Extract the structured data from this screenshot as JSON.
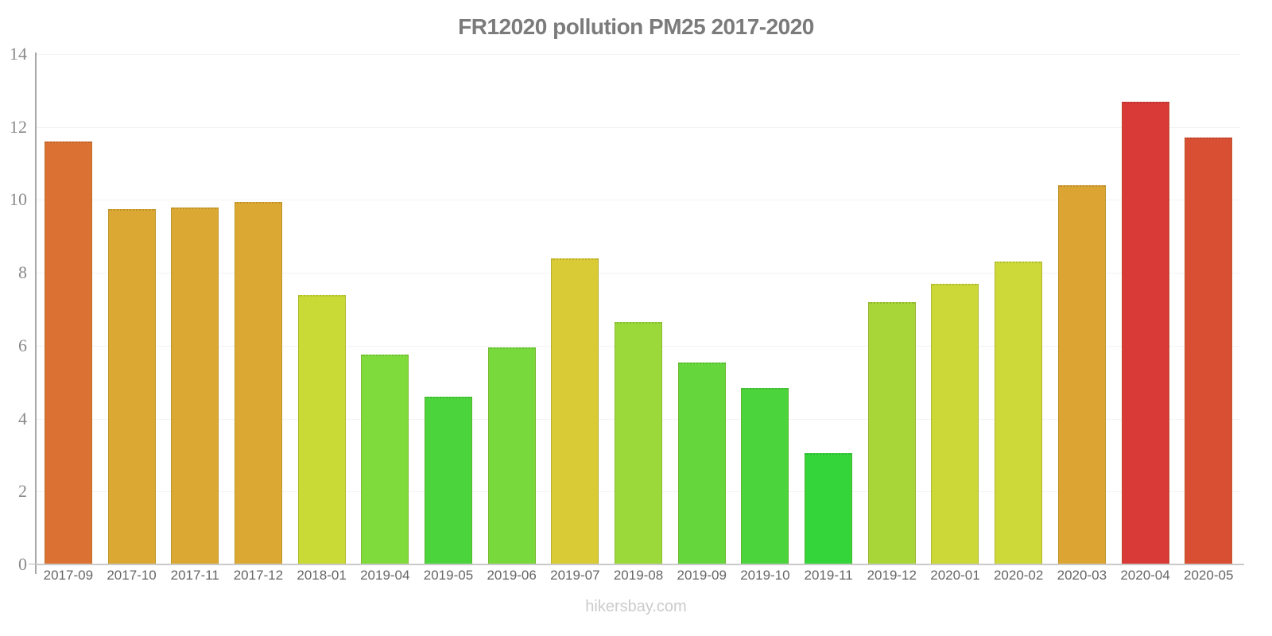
{
  "title": "FR12020 pollution PM25 2017-2020",
  "footer": "hikersbay.com",
  "colors": {
    "title_text": "#7b7b7b",
    "axis_line": "#a8a8a8",
    "baseline": "#c9c9c9",
    "gridline": "#f3f3f3",
    "y_tick_text": "#8a8a8a",
    "x_tick_text": "#666666",
    "footer_text": "#cbcbcb",
    "background": "#ffffff"
  },
  "chart_data": {
    "type": "bar",
    "title": "FR12020 pollution PM25 2017-2020",
    "xlabel": "",
    "ylabel": "",
    "ylim": [
      0,
      14
    ],
    "yticks": [
      0,
      2,
      4,
      6,
      8,
      10,
      12,
      14
    ],
    "grid": true,
    "legend": "none",
    "categories": [
      "2017-09",
      "2017-10",
      "2017-11",
      "2017-12",
      "2018-01",
      "2019-04",
      "2019-05",
      "2019-06",
      "2019-07",
      "2019-08",
      "2019-09",
      "2019-10",
      "2019-11",
      "2019-12",
      "2020-01",
      "2020-02",
      "2020-03",
      "2020-04",
      "2020-05"
    ],
    "values": [
      11.6,
      9.75,
      9.8,
      9.95,
      7.4,
      5.75,
      4.6,
      5.95,
      8.4,
      6.65,
      5.55,
      4.85,
      3.05,
      7.2,
      7.7,
      8.3,
      10.4,
      12.7,
      11.7
    ],
    "bar_colors": [
      "#db7233",
      "#dba933",
      "#dba933",
      "#dba933",
      "#c9da36",
      "#7fda3c",
      "#4bd43b",
      "#77d93c",
      "#d9cb35",
      "#9bd93a",
      "#65d73c",
      "#4bd43b",
      "#33d53a",
      "#a8d639",
      "#ccd838",
      "#cdd839",
      "#dba433",
      "#d93a38",
      "#d94f33"
    ]
  }
}
